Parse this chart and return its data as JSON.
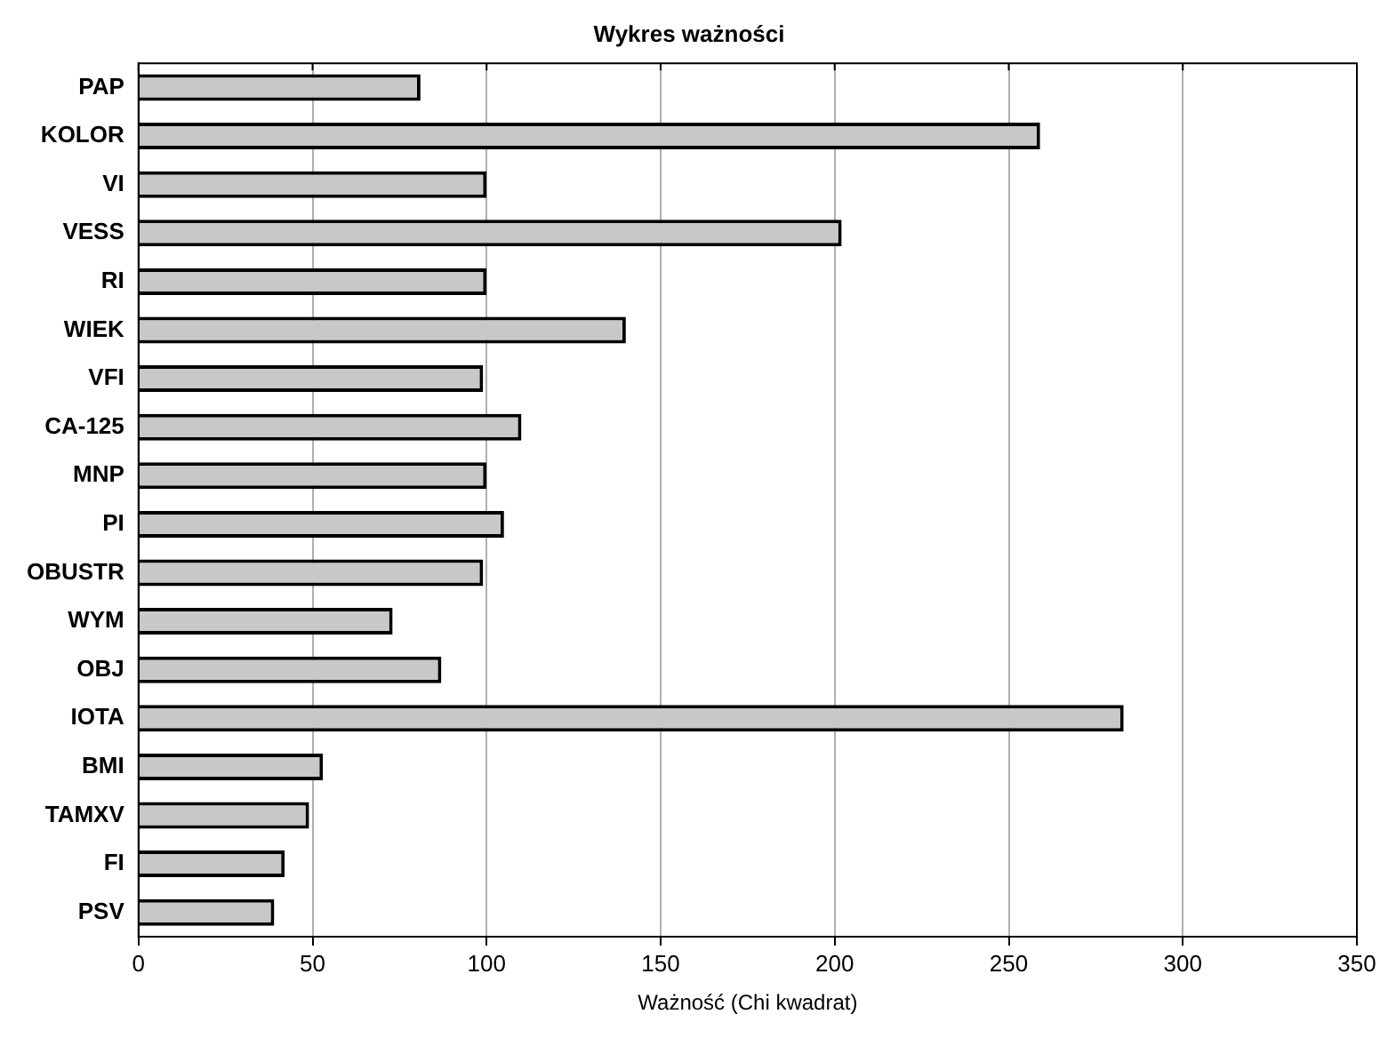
{
  "chart_data": {
    "type": "bar",
    "orientation": "horizontal",
    "title": "Wykres ważności",
    "xlabel": "Ważność (Chi kwadrat)",
    "categories": [
      "PAP",
      "KOLOR",
      "VI",
      "VESS",
      "RI",
      "WIEK",
      "VFI",
      "CA-125",
      "MNP",
      "PI",
      "OBUSTR",
      "WYM",
      "OBJ",
      "IOTA",
      "BMI",
      "TAMXV",
      "FI",
      "PSV"
    ],
    "values": [
      81,
      259,
      100,
      202,
      100,
      140,
      99,
      110,
      100,
      105,
      99,
      73,
      87,
      283,
      53,
      49,
      42,
      39
    ],
    "color": "#c8c8c8",
    "xlim": [
      0,
      350
    ],
    "xticks": [
      0,
      50,
      100,
      150,
      200,
      250,
      300,
      350
    ],
    "grid": "x",
    "legend": false
  }
}
